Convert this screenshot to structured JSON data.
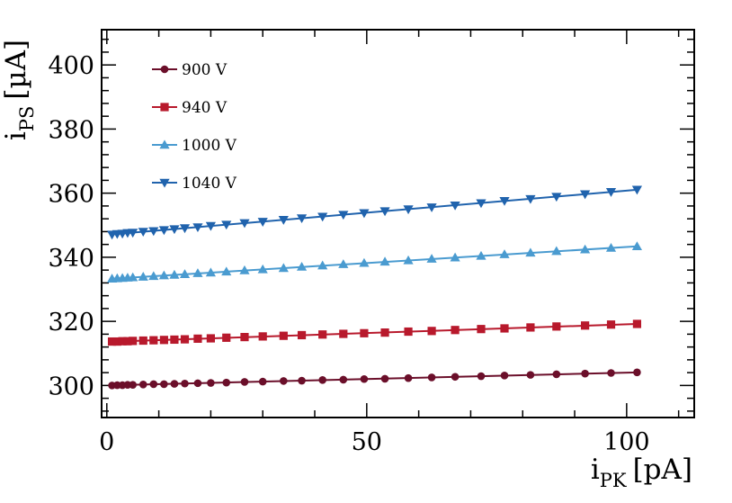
{
  "chart_data": {
    "type": "scatter",
    "title": "",
    "xlabel": {
      "main": "i",
      "sub": "PK",
      "unit": "[pA]"
    },
    "ylabel": {
      "main": "i",
      "sub": "PS",
      "unit": "[µA]"
    },
    "xlim": [
      -1,
      113
    ],
    "ylim": [
      290,
      411
    ],
    "x_ticks": [
      0,
      50,
      100
    ],
    "y_ticks": [
      300,
      320,
      340,
      360,
      380,
      400
    ],
    "x_tick_labels": [
      "0",
      "50",
      "100"
    ],
    "y_tick_labels": [
      "300",
      "320",
      "340",
      "360",
      "380",
      "400"
    ],
    "grid": false,
    "legend_position": "top-left",
    "x": [
      1,
      2,
      3,
      4,
      5,
      7,
      9,
      11,
      13,
      15,
      17.5,
      20,
      23,
      26.5,
      30,
      34,
      37.5,
      41.5,
      45.5,
      49.5,
      53.5,
      58,
      62.5,
      67,
      72,
      76.5,
      81.5,
      86.5,
      92,
      97,
      102
    ],
    "series": [
      {
        "name": "900 V",
        "color": "#6b0f2a",
        "marker": "circle",
        "fit": [
          300.0,
          0.04
        ],
        "values": [
          300.0,
          300.1,
          300.1,
          300.2,
          300.2,
          300.3,
          300.4,
          300.4,
          300.5,
          300.6,
          300.7,
          300.8,
          300.9,
          301.1,
          301.2,
          301.4,
          301.5,
          301.7,
          301.8,
          302.0,
          302.1,
          302.3,
          302.5,
          302.7,
          302.9,
          303.1,
          303.3,
          303.5,
          303.7,
          303.9,
          304.1
        ]
      },
      {
        "name": "940 V",
        "color": "#b8192c",
        "marker": "square",
        "fit": [
          313.6,
          0.055
        ],
        "values": [
          313.7,
          313.7,
          313.8,
          313.8,
          313.9,
          314.0,
          314.1,
          314.2,
          314.3,
          314.4,
          314.6,
          314.7,
          314.9,
          315.1,
          315.3,
          315.5,
          315.7,
          315.9,
          316.1,
          316.3,
          316.5,
          316.8,
          317.0,
          317.3,
          317.6,
          317.8,
          318.1,
          318.4,
          318.7,
          319.0,
          319.2
        ]
      },
      {
        "name": "1000 V",
        "color": "#4a9bd0",
        "marker": "triangle-up",
        "fit": [
          333.2,
          0.1
        ],
        "values": [
          333.3,
          333.4,
          333.5,
          333.6,
          333.7,
          333.9,
          334.1,
          334.3,
          334.5,
          334.7,
          335.0,
          335.2,
          335.5,
          335.9,
          336.2,
          336.6,
          337.0,
          337.4,
          337.8,
          338.2,
          338.6,
          339.0,
          339.5,
          339.9,
          340.4,
          340.9,
          341.4,
          341.9,
          342.4,
          342.9,
          343.4
        ]
      },
      {
        "name": "1040 V",
        "color": "#2063ad",
        "marker": "triangle-down",
        "fit": [
          347.0,
          0.138
        ],
        "values": [
          347.1,
          347.3,
          347.4,
          347.6,
          347.7,
          348.0,
          348.2,
          348.5,
          348.8,
          349.1,
          349.4,
          349.8,
          350.2,
          350.7,
          351.1,
          351.7,
          352.2,
          352.7,
          353.3,
          353.8,
          354.4,
          355.0,
          355.6,
          356.2,
          356.9,
          357.6,
          358.2,
          358.9,
          359.7,
          360.4,
          361.1
        ]
      }
    ]
  }
}
